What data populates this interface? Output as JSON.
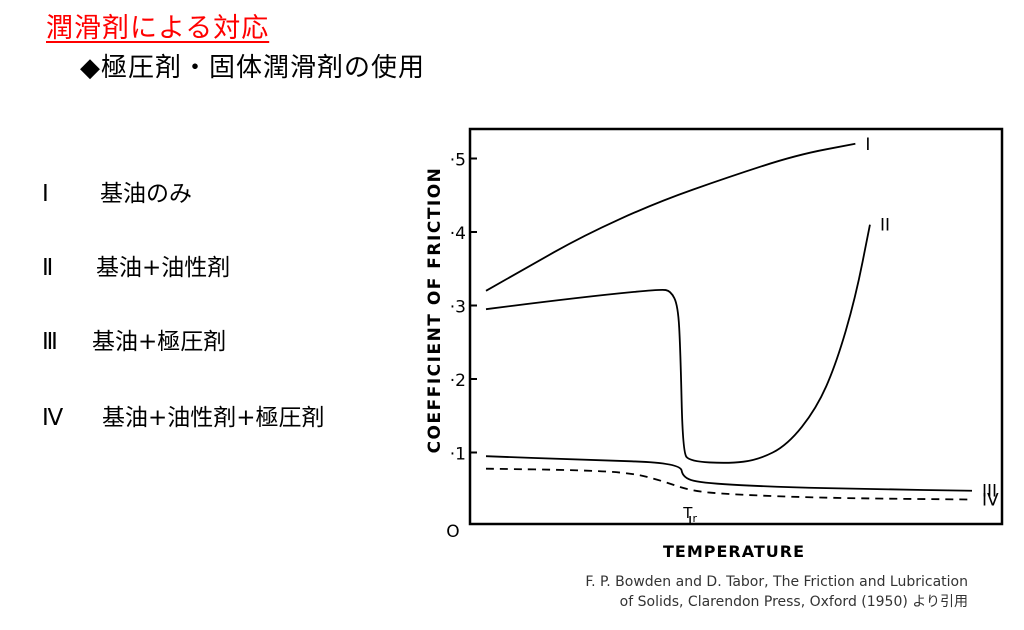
{
  "header": {
    "title": "潤滑剤による対応",
    "subtitle": "◆極圧剤・固体潤滑剤の使用"
  },
  "legend": [
    {
      "numeral": "Ⅰ",
      "label": "基油のみ"
    },
    {
      "numeral": "Ⅱ",
      "label": "基油+油性剤"
    },
    {
      "numeral": "Ⅲ",
      "label": "基油+極圧剤"
    },
    {
      "numeral": "Ⅳ",
      "label": "基油+油性剤+極圧剤"
    }
  ],
  "citation": {
    "line1": "F. P. Bowden and D. Tabor, The Friction and Lubrication",
    "line2": "of Solids, Clarendon Press, Oxford (1950) より引用"
  },
  "chart_data": {
    "type": "line",
    "xlabel": "TEMPERATURE",
    "ylabel": "COEFFICIENT OF FRICTION",
    "ylim": [
      0,
      0.55
    ],
    "yticks": [
      {
        "value": 0.1,
        "label": "·1"
      },
      {
        "value": 0.2,
        "label": "·2"
      },
      {
        "value": 0.3,
        "label": "·3"
      },
      {
        "value": 0.4,
        "label": "·4"
      },
      {
        "value": 0.5,
        "label": "·5"
      }
    ],
    "origin_label": "O",
    "x_marker": {
      "label": "Tr",
      "x": 0.42
    },
    "series": [
      {
        "name": "I",
        "style": "solid",
        "points": [
          [
            0.0,
            0.32
          ],
          [
            0.08,
            0.35
          ],
          [
            0.2,
            0.395
          ],
          [
            0.35,
            0.44
          ],
          [
            0.5,
            0.475
          ],
          [
            0.64,
            0.505
          ],
          [
            0.76,
            0.52
          ]
        ]
      },
      {
        "name": "II",
        "style": "solid",
        "points": [
          [
            0.0,
            0.295
          ],
          [
            0.12,
            0.305
          ],
          [
            0.25,
            0.315
          ],
          [
            0.36,
            0.322
          ],
          [
            0.38,
            0.32
          ],
          [
            0.395,
            0.3
          ],
          [
            0.4,
            0.24
          ],
          [
            0.405,
            0.1
          ],
          [
            0.42,
            0.088
          ],
          [
            0.5,
            0.085
          ],
          [
            0.56,
            0.09
          ],
          [
            0.62,
            0.11
          ],
          [
            0.68,
            0.16
          ],
          [
            0.72,
            0.22
          ],
          [
            0.76,
            0.31
          ],
          [
            0.79,
            0.41
          ]
        ]
      },
      {
        "name": "III",
        "style": "solid",
        "points": [
          [
            0.0,
            0.095
          ],
          [
            0.2,
            0.09
          ],
          [
            0.4,
            0.086
          ],
          [
            0.405,
            0.065
          ],
          [
            0.45,
            0.058
          ],
          [
            0.6,
            0.053
          ],
          [
            0.8,
            0.05
          ],
          [
            1.0,
            0.048
          ]
        ]
      },
      {
        "name": "IV",
        "style": "dashed",
        "points": [
          [
            0.0,
            0.078
          ],
          [
            0.2,
            0.076
          ],
          [
            0.3,
            0.072
          ],
          [
            0.36,
            0.062
          ],
          [
            0.42,
            0.048
          ],
          [
            0.5,
            0.043
          ],
          [
            0.7,
            0.038
          ],
          [
            1.0,
            0.036
          ]
        ]
      }
    ],
    "grid": false
  }
}
